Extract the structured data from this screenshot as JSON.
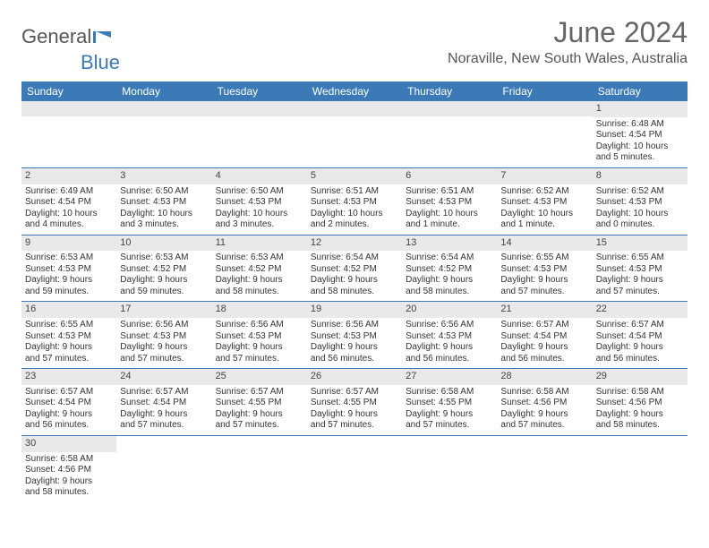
{
  "brand": {
    "word1": "General",
    "word2": "Blue"
  },
  "title": "June 2024",
  "subtitle": "Noraville, New South Wales, Australia",
  "colors": {
    "header_bg": "#3b79b7",
    "header_text": "#ffffff",
    "daynum_bg": "#e9e9e9",
    "text": "#333333",
    "rule": "#3b79b7"
  },
  "fonts": {
    "title_size": 32,
    "subtitle_size": 16,
    "head_size": 12,
    "cell_size": 10
  },
  "weekdays": [
    "Sunday",
    "Monday",
    "Tuesday",
    "Wednesday",
    "Thursday",
    "Friday",
    "Saturday"
  ],
  "weeks": [
    [
      null,
      null,
      null,
      null,
      null,
      null,
      {
        "n": "1",
        "sr": "Sunrise: 6:48 AM",
        "ss": "Sunset: 4:54 PM",
        "d1": "Daylight: 10 hours",
        "d2": "and 5 minutes."
      }
    ],
    [
      {
        "n": "2",
        "sr": "Sunrise: 6:49 AM",
        "ss": "Sunset: 4:54 PM",
        "d1": "Daylight: 10 hours",
        "d2": "and 4 minutes."
      },
      {
        "n": "3",
        "sr": "Sunrise: 6:50 AM",
        "ss": "Sunset: 4:53 PM",
        "d1": "Daylight: 10 hours",
        "d2": "and 3 minutes."
      },
      {
        "n": "4",
        "sr": "Sunrise: 6:50 AM",
        "ss": "Sunset: 4:53 PM",
        "d1": "Daylight: 10 hours",
        "d2": "and 3 minutes."
      },
      {
        "n": "5",
        "sr": "Sunrise: 6:51 AM",
        "ss": "Sunset: 4:53 PM",
        "d1": "Daylight: 10 hours",
        "d2": "and 2 minutes."
      },
      {
        "n": "6",
        "sr": "Sunrise: 6:51 AM",
        "ss": "Sunset: 4:53 PM",
        "d1": "Daylight: 10 hours",
        "d2": "and 1 minute."
      },
      {
        "n": "7",
        "sr": "Sunrise: 6:52 AM",
        "ss": "Sunset: 4:53 PM",
        "d1": "Daylight: 10 hours",
        "d2": "and 1 minute."
      },
      {
        "n": "8",
        "sr": "Sunrise: 6:52 AM",
        "ss": "Sunset: 4:53 PM",
        "d1": "Daylight: 10 hours",
        "d2": "and 0 minutes."
      }
    ],
    [
      {
        "n": "9",
        "sr": "Sunrise: 6:53 AM",
        "ss": "Sunset: 4:53 PM",
        "d1": "Daylight: 9 hours",
        "d2": "and 59 minutes."
      },
      {
        "n": "10",
        "sr": "Sunrise: 6:53 AM",
        "ss": "Sunset: 4:52 PM",
        "d1": "Daylight: 9 hours",
        "d2": "and 59 minutes."
      },
      {
        "n": "11",
        "sr": "Sunrise: 6:53 AM",
        "ss": "Sunset: 4:52 PM",
        "d1": "Daylight: 9 hours",
        "d2": "and 58 minutes."
      },
      {
        "n": "12",
        "sr": "Sunrise: 6:54 AM",
        "ss": "Sunset: 4:52 PM",
        "d1": "Daylight: 9 hours",
        "d2": "and 58 minutes."
      },
      {
        "n": "13",
        "sr": "Sunrise: 6:54 AM",
        "ss": "Sunset: 4:52 PM",
        "d1": "Daylight: 9 hours",
        "d2": "and 58 minutes."
      },
      {
        "n": "14",
        "sr": "Sunrise: 6:55 AM",
        "ss": "Sunset: 4:53 PM",
        "d1": "Daylight: 9 hours",
        "d2": "and 57 minutes."
      },
      {
        "n": "15",
        "sr": "Sunrise: 6:55 AM",
        "ss": "Sunset: 4:53 PM",
        "d1": "Daylight: 9 hours",
        "d2": "and 57 minutes."
      }
    ],
    [
      {
        "n": "16",
        "sr": "Sunrise: 6:55 AM",
        "ss": "Sunset: 4:53 PM",
        "d1": "Daylight: 9 hours",
        "d2": "and 57 minutes."
      },
      {
        "n": "17",
        "sr": "Sunrise: 6:56 AM",
        "ss": "Sunset: 4:53 PM",
        "d1": "Daylight: 9 hours",
        "d2": "and 57 minutes."
      },
      {
        "n": "18",
        "sr": "Sunrise: 6:56 AM",
        "ss": "Sunset: 4:53 PM",
        "d1": "Daylight: 9 hours",
        "d2": "and 57 minutes."
      },
      {
        "n": "19",
        "sr": "Sunrise: 6:56 AM",
        "ss": "Sunset: 4:53 PM",
        "d1": "Daylight: 9 hours",
        "d2": "and 56 minutes."
      },
      {
        "n": "20",
        "sr": "Sunrise: 6:56 AM",
        "ss": "Sunset: 4:53 PM",
        "d1": "Daylight: 9 hours",
        "d2": "and 56 minutes."
      },
      {
        "n": "21",
        "sr": "Sunrise: 6:57 AM",
        "ss": "Sunset: 4:54 PM",
        "d1": "Daylight: 9 hours",
        "d2": "and 56 minutes."
      },
      {
        "n": "22",
        "sr": "Sunrise: 6:57 AM",
        "ss": "Sunset: 4:54 PM",
        "d1": "Daylight: 9 hours",
        "d2": "and 56 minutes."
      }
    ],
    [
      {
        "n": "23",
        "sr": "Sunrise: 6:57 AM",
        "ss": "Sunset: 4:54 PM",
        "d1": "Daylight: 9 hours",
        "d2": "and 56 minutes."
      },
      {
        "n": "24",
        "sr": "Sunrise: 6:57 AM",
        "ss": "Sunset: 4:54 PM",
        "d1": "Daylight: 9 hours",
        "d2": "and 57 minutes."
      },
      {
        "n": "25",
        "sr": "Sunrise: 6:57 AM",
        "ss": "Sunset: 4:55 PM",
        "d1": "Daylight: 9 hours",
        "d2": "and 57 minutes."
      },
      {
        "n": "26",
        "sr": "Sunrise: 6:57 AM",
        "ss": "Sunset: 4:55 PM",
        "d1": "Daylight: 9 hours",
        "d2": "and 57 minutes."
      },
      {
        "n": "27",
        "sr": "Sunrise: 6:58 AM",
        "ss": "Sunset: 4:55 PM",
        "d1": "Daylight: 9 hours",
        "d2": "and 57 minutes."
      },
      {
        "n": "28",
        "sr": "Sunrise: 6:58 AM",
        "ss": "Sunset: 4:56 PM",
        "d1": "Daylight: 9 hours",
        "d2": "and 57 minutes."
      },
      {
        "n": "29",
        "sr": "Sunrise: 6:58 AM",
        "ss": "Sunset: 4:56 PM",
        "d1": "Daylight: 9 hours",
        "d2": "and 58 minutes."
      }
    ],
    [
      {
        "n": "30",
        "sr": "Sunrise: 6:58 AM",
        "ss": "Sunset: 4:56 PM",
        "d1": "Daylight: 9 hours",
        "d2": "and 58 minutes."
      },
      null,
      null,
      null,
      null,
      null,
      null
    ]
  ]
}
